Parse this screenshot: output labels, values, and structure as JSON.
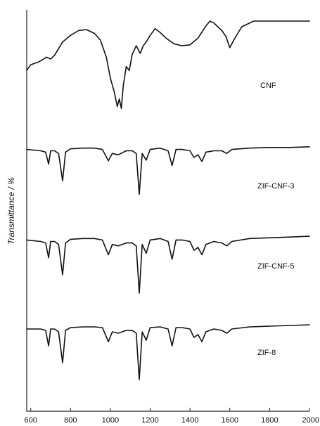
{
  "chart_data": {
    "type": "line",
    "title": "",
    "xlabel": "",
    "ylabel": "Transmittance / %",
    "xlim": [
      580,
      2000
    ],
    "x_ticks": [
      600,
      800,
      1000,
      1200,
      1400,
      1600,
      1800,
      2000
    ],
    "x_tick_labels": [
      "600",
      "800",
      "1000",
      "1200",
      "1400",
      "1600",
      "1800",
      "2000"
    ],
    "y_units": "arbitrary (stacked, offset spectra)",
    "y_ticks_shown": false,
    "grid": false,
    "legend": "none (series labeled inline at right)",
    "series": [
      {
        "name": "CNF",
        "offset": 3,
        "points": [
          [
            580,
            0.48
          ],
          [
            600,
            0.54
          ],
          [
            640,
            0.57
          ],
          [
            680,
            0.62
          ],
          [
            700,
            0.6
          ],
          [
            720,
            0.64
          ],
          [
            760,
            0.78
          ],
          [
            800,
            0.85
          ],
          [
            840,
            0.9
          ],
          [
            880,
            0.91
          ],
          [
            920,
            0.87
          ],
          [
            950,
            0.8
          ],
          [
            980,
            0.62
          ],
          [
            1000,
            0.4
          ],
          [
            1020,
            0.25
          ],
          [
            1035,
            0.1
          ],
          [
            1045,
            0.18
          ],
          [
            1055,
            0.08
          ],
          [
            1065,
            0.32
          ],
          [
            1080,
            0.52
          ],
          [
            1095,
            0.48
          ],
          [
            1110,
            0.65
          ],
          [
            1130,
            0.74
          ],
          [
            1150,
            0.66
          ],
          [
            1165,
            0.74
          ],
          [
            1180,
            0.78
          ],
          [
            1200,
            0.85
          ],
          [
            1225,
            0.92
          ],
          [
            1250,
            0.88
          ],
          [
            1280,
            0.82
          ],
          [
            1320,
            0.76
          ],
          [
            1360,
            0.74
          ],
          [
            1400,
            0.75
          ],
          [
            1440,
            0.82
          ],
          [
            1480,
            0.95
          ],
          [
            1500,
            1.0
          ],
          [
            1520,
            0.98
          ],
          [
            1560,
            0.9
          ],
          [
            1580,
            0.84
          ],
          [
            1600,
            0.72
          ],
          [
            1620,
            0.8
          ],
          [
            1660,
            0.94
          ],
          [
            1720,
            1.0
          ],
          [
            1800,
            1.0
          ],
          [
            1900,
            1.0
          ],
          [
            2000,
            1.0
          ]
        ]
      },
      {
        "name": "ZIF-CNF-3",
        "offset": 2,
        "points": [
          [
            580,
            0.92
          ],
          [
            650,
            0.9
          ],
          [
            675,
            0.88
          ],
          [
            690,
            0.7
          ],
          [
            700,
            0.9
          ],
          [
            720,
            0.9
          ],
          [
            740,
            0.86
          ],
          [
            760,
            0.45
          ],
          [
            775,
            0.88
          ],
          [
            800,
            0.93
          ],
          [
            860,
            0.94
          ],
          [
            920,
            0.94
          ],
          [
            960,
            0.92
          ],
          [
            990,
            0.75
          ],
          [
            1010,
            0.86
          ],
          [
            1040,
            0.84
          ],
          [
            1080,
            0.9
          ],
          [
            1110,
            0.9
          ],
          [
            1130,
            0.86
          ],
          [
            1145,
            0.25
          ],
          [
            1160,
            0.86
          ],
          [
            1180,
            0.76
          ],
          [
            1200,
            0.92
          ],
          [
            1250,
            0.94
          ],
          [
            1290,
            0.9
          ],
          [
            1310,
            0.68
          ],
          [
            1330,
            0.92
          ],
          [
            1360,
            0.92
          ],
          [
            1400,
            0.9
          ],
          [
            1420,
            0.8
          ],
          [
            1440,
            0.84
          ],
          [
            1460,
            0.74
          ],
          [
            1480,
            0.88
          ],
          [
            1520,
            0.9
          ],
          [
            1560,
            0.9
          ],
          [
            1585,
            0.86
          ],
          [
            1610,
            0.92
          ],
          [
            1700,
            0.94
          ],
          [
            1800,
            0.95
          ],
          [
            1900,
            0.95
          ],
          [
            2000,
            0.96
          ]
        ]
      },
      {
        "name": "ZIF-CNF-5",
        "offset": 1,
        "points": [
          [
            580,
            0.92
          ],
          [
            650,
            0.9
          ],
          [
            675,
            0.88
          ],
          [
            690,
            0.68
          ],
          [
            700,
            0.9
          ],
          [
            720,
            0.9
          ],
          [
            740,
            0.86
          ],
          [
            760,
            0.45
          ],
          [
            775,
            0.88
          ],
          [
            800,
            0.93
          ],
          [
            860,
            0.94
          ],
          [
            920,
            0.94
          ],
          [
            960,
            0.92
          ],
          [
            990,
            0.72
          ],
          [
            1010,
            0.86
          ],
          [
            1040,
            0.84
          ],
          [
            1080,
            0.88
          ],
          [
            1110,
            0.88
          ],
          [
            1130,
            0.84
          ],
          [
            1145,
            0.2
          ],
          [
            1160,
            0.86
          ],
          [
            1180,
            0.74
          ],
          [
            1200,
            0.92
          ],
          [
            1250,
            0.94
          ],
          [
            1290,
            0.9
          ],
          [
            1310,
            0.66
          ],
          [
            1330,
            0.92
          ],
          [
            1360,
            0.92
          ],
          [
            1400,
            0.9
          ],
          [
            1420,
            0.78
          ],
          [
            1440,
            0.82
          ],
          [
            1460,
            0.72
          ],
          [
            1480,
            0.86
          ],
          [
            1520,
            0.9
          ],
          [
            1560,
            0.88
          ],
          [
            1585,
            0.84
          ],
          [
            1610,
            0.9
          ],
          [
            1700,
            0.94
          ],
          [
            1800,
            0.95
          ],
          [
            1900,
            0.96
          ],
          [
            2000,
            0.97
          ]
        ]
      },
      {
        "name": "ZIF-8",
        "offset": 0,
        "points": [
          [
            580,
            0.9
          ],
          [
            650,
            0.9
          ],
          [
            675,
            0.88
          ],
          [
            690,
            0.66
          ],
          [
            700,
            0.9
          ],
          [
            720,
            0.9
          ],
          [
            740,
            0.86
          ],
          [
            760,
            0.42
          ],
          [
            775,
            0.88
          ],
          [
            800,
            0.92
          ],
          [
            860,
            0.93
          ],
          [
            920,
            0.93
          ],
          [
            960,
            0.92
          ],
          [
            990,
            0.72
          ],
          [
            1010,
            0.86
          ],
          [
            1040,
            0.84
          ],
          [
            1080,
            0.88
          ],
          [
            1110,
            0.88
          ],
          [
            1130,
            0.84
          ],
          [
            1145,
            0.18
          ],
          [
            1160,
            0.86
          ],
          [
            1180,
            0.74
          ],
          [
            1200,
            0.92
          ],
          [
            1250,
            0.93
          ],
          [
            1290,
            0.9
          ],
          [
            1310,
            0.66
          ],
          [
            1330,
            0.92
          ],
          [
            1360,
            0.92
          ],
          [
            1400,
            0.9
          ],
          [
            1420,
            0.78
          ],
          [
            1440,
            0.82
          ],
          [
            1460,
            0.72
          ],
          [
            1480,
            0.86
          ],
          [
            1520,
            0.9
          ],
          [
            1560,
            0.88
          ],
          [
            1585,
            0.84
          ],
          [
            1610,
            0.9
          ],
          [
            1700,
            0.93
          ],
          [
            1800,
            0.94
          ],
          [
            1900,
            0.95
          ],
          [
            2000,
            0.96
          ]
        ]
      }
    ]
  }
}
